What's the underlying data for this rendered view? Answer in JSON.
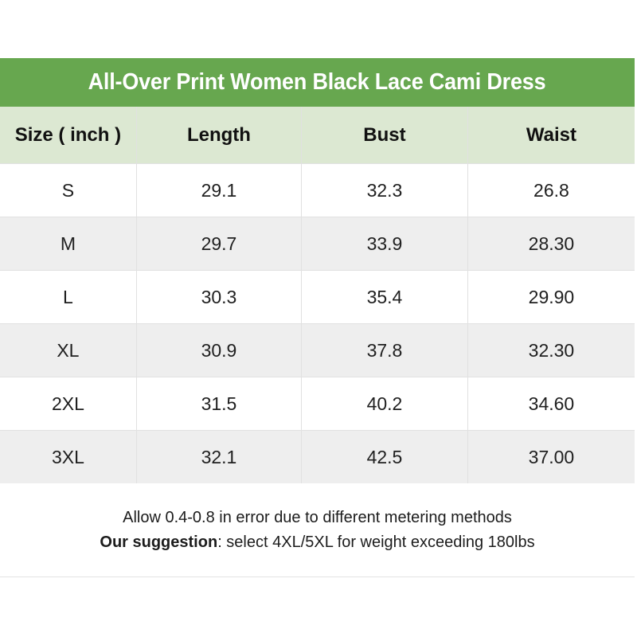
{
  "title": "All-Over Print Women Black Lace Cami Dress",
  "table": {
    "columns": [
      "Size ( inch )",
      "Length",
      "Bust",
      "Waist"
    ],
    "rows": [
      [
        "S",
        "29.1",
        "32.3",
        "26.8"
      ],
      [
        "M",
        "29.7",
        "33.9",
        "28.30"
      ],
      [
        "L",
        "30.3",
        "35.4",
        "29.90"
      ],
      [
        "XL",
        "30.9",
        "37.8",
        "32.30"
      ],
      [
        "2XL",
        "31.5",
        "40.2",
        "34.60"
      ],
      [
        "3XL",
        "32.1",
        "42.5",
        "37.00"
      ]
    ]
  },
  "notes": {
    "line1": "Allow 0.4-0.8 in error due to different metering methods",
    "line2_bold": "Our suggestion",
    "line2_rest": ": select 4XL/5XL for weight exceeding 180lbs"
  },
  "colors": {
    "title_bar_green": "#67a74f",
    "header_row_green": "#dce8d2",
    "stripe_gray": "#eeeeee",
    "divider_gray": "#e1e1e1",
    "title_text": "#ffffff",
    "body_text": "#1c1c1c"
  }
}
